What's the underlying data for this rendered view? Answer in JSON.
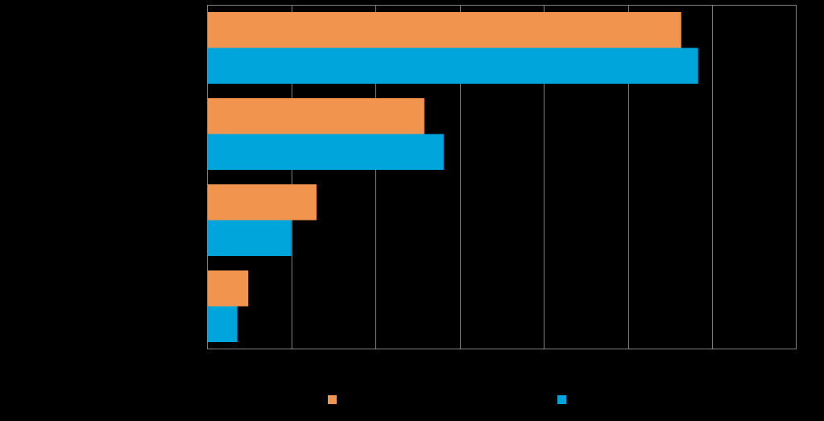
{
  "chart_data": {
    "type": "bar",
    "orientation": "horizontal",
    "categories": [
      "",
      "",
      "",
      ""
    ],
    "series": [
      {
        "color": "#F0944E",
        "values": [
          56.3,
          25.8,
          13.0,
          4.9
        ]
      },
      {
        "color": "#00A5DB",
        "values": [
          58.3,
          28.1,
          10.0,
          3.6
        ]
      }
    ],
    "xlim": [
      0,
      70
    ],
    "x_gridline_step": 10,
    "grid": true,
    "legend": "bottom",
    "title": "",
    "xlabel": "",
    "ylabel": ""
  },
  "colors": {
    "background": "#000000",
    "gridline": "#7F7F7F",
    "axis": "#7F7F7F"
  }
}
